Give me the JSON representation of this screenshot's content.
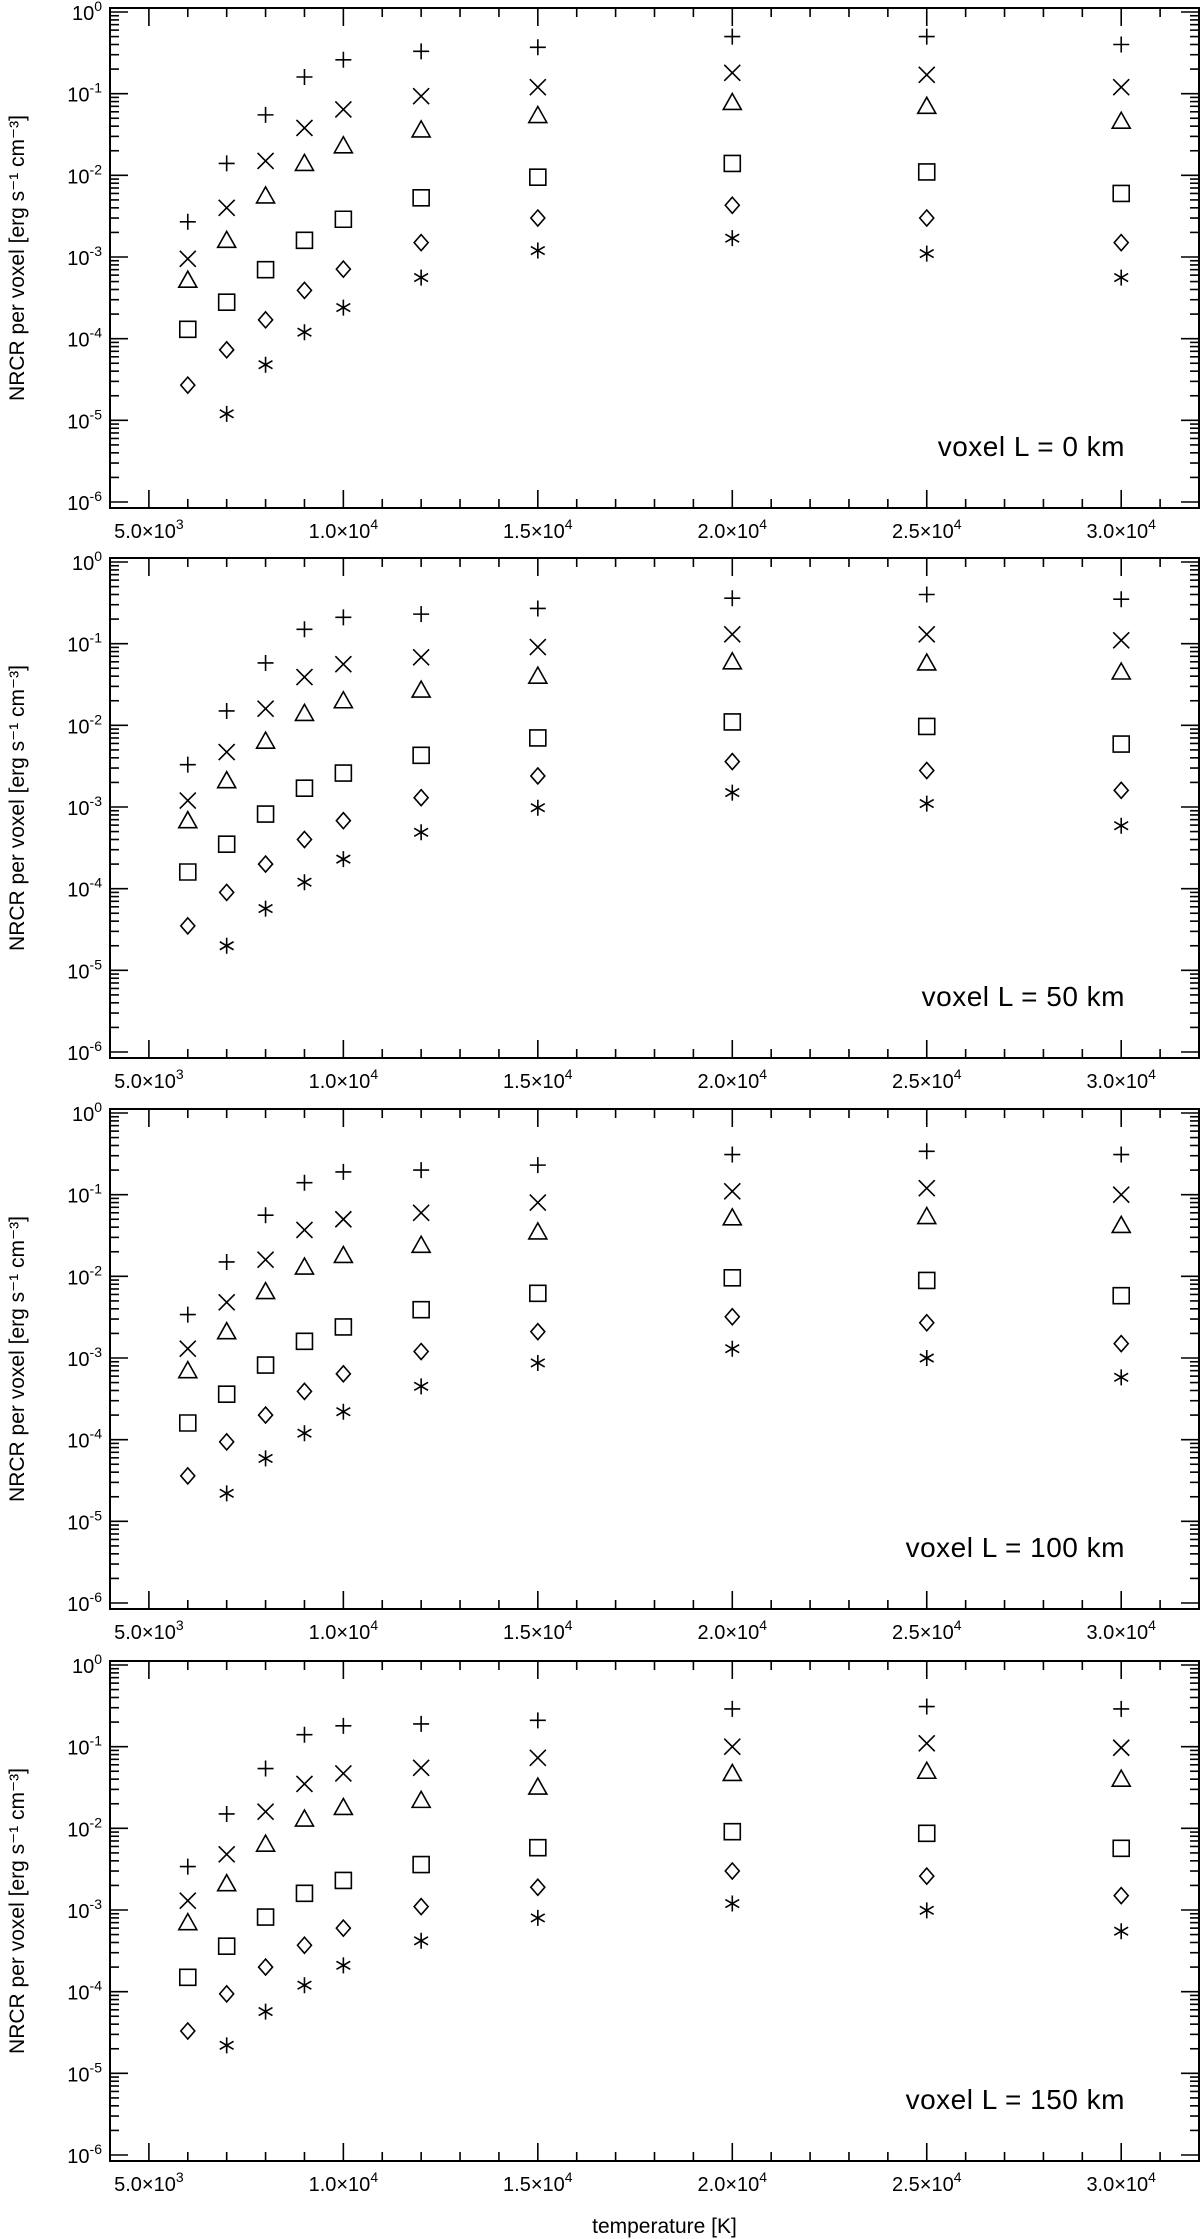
{
  "chart_data": [
    {
      "type": "scatter",
      "label": "voxel L = 0 km",
      "ylabel": "NRCR per voxel [erg s⁻¹ cm⁻³]",
      "xlabel": "",
      "x": [
        6000,
        7000,
        8000,
        9000,
        10000,
        12000,
        15000,
        20000,
        25000,
        30000
      ],
      "series": [
        {
          "marker": "plus",
          "values": [
            0.0027,
            0.014,
            0.055,
            0.16,
            0.26,
            0.33,
            0.37,
            0.5,
            0.5,
            0.4
          ]
        },
        {
          "marker": "cross",
          "values": [
            0.00095,
            0.004,
            0.015,
            0.038,
            0.064,
            0.093,
            0.12,
            0.18,
            0.17,
            0.12
          ]
        },
        {
          "marker": "triangle",
          "values": [
            0.00052,
            0.0016,
            0.0056,
            0.014,
            0.023,
            0.036,
            0.054,
            0.078,
            0.07,
            0.046
          ]
        },
        {
          "marker": "square",
          "values": [
            0.00013,
            0.00028,
            0.0007,
            0.0016,
            0.0029,
            0.0053,
            0.0095,
            0.014,
            0.011,
            0.006
          ]
        },
        {
          "marker": "diamond",
          "values": [
            2.7e-05,
            7.3e-05,
            0.00017,
            0.00039,
            0.00071,
            0.0015,
            0.003,
            0.0043,
            0.003,
            0.0015
          ]
        },
        {
          "marker": "asterisk",
          "values": [
            null,
            1.2e-05,
            4.8e-05,
            0.00012,
            0.00024,
            0.00056,
            0.0012,
            0.0017,
            0.0011,
            0.00056
          ]
        }
      ]
    },
    {
      "type": "scatter",
      "label": "voxel L = 50 km",
      "ylabel": "NRCR per voxel [erg s⁻¹ cm⁻³]",
      "xlabel": "",
      "x": [
        6000,
        7000,
        8000,
        9000,
        10000,
        12000,
        15000,
        20000,
        25000,
        30000
      ],
      "series": [
        {
          "marker": "plus",
          "values": [
            0.0033,
            0.015,
            0.058,
            0.15,
            0.21,
            0.23,
            0.27,
            0.36,
            0.4,
            0.35
          ]
        },
        {
          "marker": "cross",
          "values": [
            0.0012,
            0.0047,
            0.016,
            0.039,
            0.056,
            0.068,
            0.091,
            0.13,
            0.13,
            0.11
          ]
        },
        {
          "marker": "triangle",
          "values": [
            0.00068,
            0.0021,
            0.0064,
            0.014,
            0.02,
            0.027,
            0.04,
            0.06,
            0.058,
            0.045
          ]
        },
        {
          "marker": "square",
          "values": [
            0.00016,
            0.00035,
            0.00082,
            0.0017,
            0.0026,
            0.0043,
            0.007,
            0.011,
            0.0097,
            0.0059
          ]
        },
        {
          "marker": "diamond",
          "values": [
            3.5e-05,
            9e-05,
            0.0002,
            0.0004,
            0.00068,
            0.0013,
            0.0024,
            0.0036,
            0.0028,
            0.0016
          ]
        },
        {
          "marker": "asterisk",
          "values": [
            null,
            2e-05,
            5.7e-05,
            0.00012,
            0.00023,
            0.00049,
            0.00098,
            0.0015,
            0.0011,
            0.00059
          ]
        }
      ]
    },
    {
      "type": "scatter",
      "label": "voxel L = 100 km",
      "ylabel": "NRCR per voxel [erg s⁻¹ cm⁻³]",
      "xlabel": "",
      "x": [
        6000,
        7000,
        8000,
        9000,
        10000,
        12000,
        15000,
        20000,
        25000,
        30000
      ],
      "series": [
        {
          "marker": "plus",
          "values": [
            0.0034,
            0.015,
            0.056,
            0.14,
            0.19,
            0.2,
            0.23,
            0.31,
            0.34,
            0.31
          ]
        },
        {
          "marker": "cross",
          "values": [
            0.0013,
            0.0048,
            0.016,
            0.037,
            0.05,
            0.06,
            0.08,
            0.11,
            0.12,
            0.1
          ]
        },
        {
          "marker": "triangle",
          "values": [
            0.0007,
            0.0021,
            0.0065,
            0.013,
            0.018,
            0.024,
            0.035,
            0.052,
            0.054,
            0.042
          ]
        },
        {
          "marker": "square",
          "values": [
            0.00016,
            0.00036,
            0.00082,
            0.0016,
            0.0024,
            0.0039,
            0.0062,
            0.0096,
            0.0089,
            0.0058
          ]
        },
        {
          "marker": "diamond",
          "values": [
            3.6e-05,
            9.4e-05,
            0.0002,
            0.00039,
            0.00064,
            0.0012,
            0.0021,
            0.0032,
            0.0027,
            0.0015
          ]
        },
        {
          "marker": "asterisk",
          "values": [
            null,
            2.2e-05,
            5.9e-05,
            0.00012,
            0.00022,
            0.00045,
            0.00087,
            0.0013,
            0.001,
            0.00058
          ]
        }
      ]
    },
    {
      "type": "scatter",
      "label": "voxel L = 150 km",
      "ylabel": "NRCR per voxel [erg s⁻¹ cm⁻³]",
      "xlabel": "temperature [K]",
      "x": [
        6000,
        7000,
        8000,
        9000,
        10000,
        12000,
        15000,
        20000,
        25000,
        30000
      ],
      "series": [
        {
          "marker": "plus",
          "values": [
            0.0034,
            0.015,
            0.054,
            0.14,
            0.18,
            0.19,
            0.21,
            0.29,
            0.31,
            0.29
          ]
        },
        {
          "marker": "cross",
          "values": [
            0.0013,
            0.0048,
            0.016,
            0.035,
            0.047,
            0.055,
            0.073,
            0.1,
            0.11,
            0.097
          ]
        },
        {
          "marker": "triangle",
          "values": [
            0.0007,
            0.0021,
            0.0064,
            0.013,
            0.018,
            0.022,
            0.032,
            0.047,
            0.05,
            0.04
          ]
        },
        {
          "marker": "square",
          "values": [
            0.00015,
            0.00036,
            0.00082,
            0.0016,
            0.0023,
            0.0036,
            0.0058,
            0.0091,
            0.0087,
            0.0057
          ]
        },
        {
          "marker": "diamond",
          "values": [
            3.3e-05,
            9.4e-05,
            0.0002,
            0.00037,
            0.0006,
            0.0011,
            0.0019,
            0.003,
            0.0026,
            0.0015
          ]
        },
        {
          "marker": "asterisk",
          "values": [
            null,
            2.2e-05,
            5.7e-05,
            0.00012,
            0.00021,
            0.00042,
            0.0008,
            0.0012,
            0.00099,
            0.00055
          ]
        }
      ]
    }
  ],
  "axes": {
    "x_range": [
      4000,
      32000
    ],
    "x_ticks": [
      5000,
      10000,
      15000,
      20000,
      25000,
      30000
    ],
    "x_tick_labels": [
      {
        "mantissa": "5.0×10",
        "exp": "3"
      },
      {
        "mantissa": "1.0×10",
        "exp": "4"
      },
      {
        "mantissa": "1.5×10",
        "exp": "4"
      },
      {
        "mantissa": "2.0×10",
        "exp": "4"
      },
      {
        "mantissa": "2.5×10",
        "exp": "4"
      },
      {
        "mantissa": "3.0×10",
        "exp": "4"
      }
    ],
    "y_scale": "log",
    "y_range": [
      1e-06,
      1
    ],
    "y_tick_labels": [
      {
        "base": "10",
        "exp": "-6"
      },
      {
        "base": "10",
        "exp": "-5"
      },
      {
        "base": "10",
        "exp": "-4"
      },
      {
        "base": "10",
        "exp": "-3"
      },
      {
        "base": "10",
        "exp": "-2"
      },
      {
        "base": "10",
        "exp": "-1"
      },
      {
        "base": "10",
        "exp": "0"
      }
    ]
  }
}
